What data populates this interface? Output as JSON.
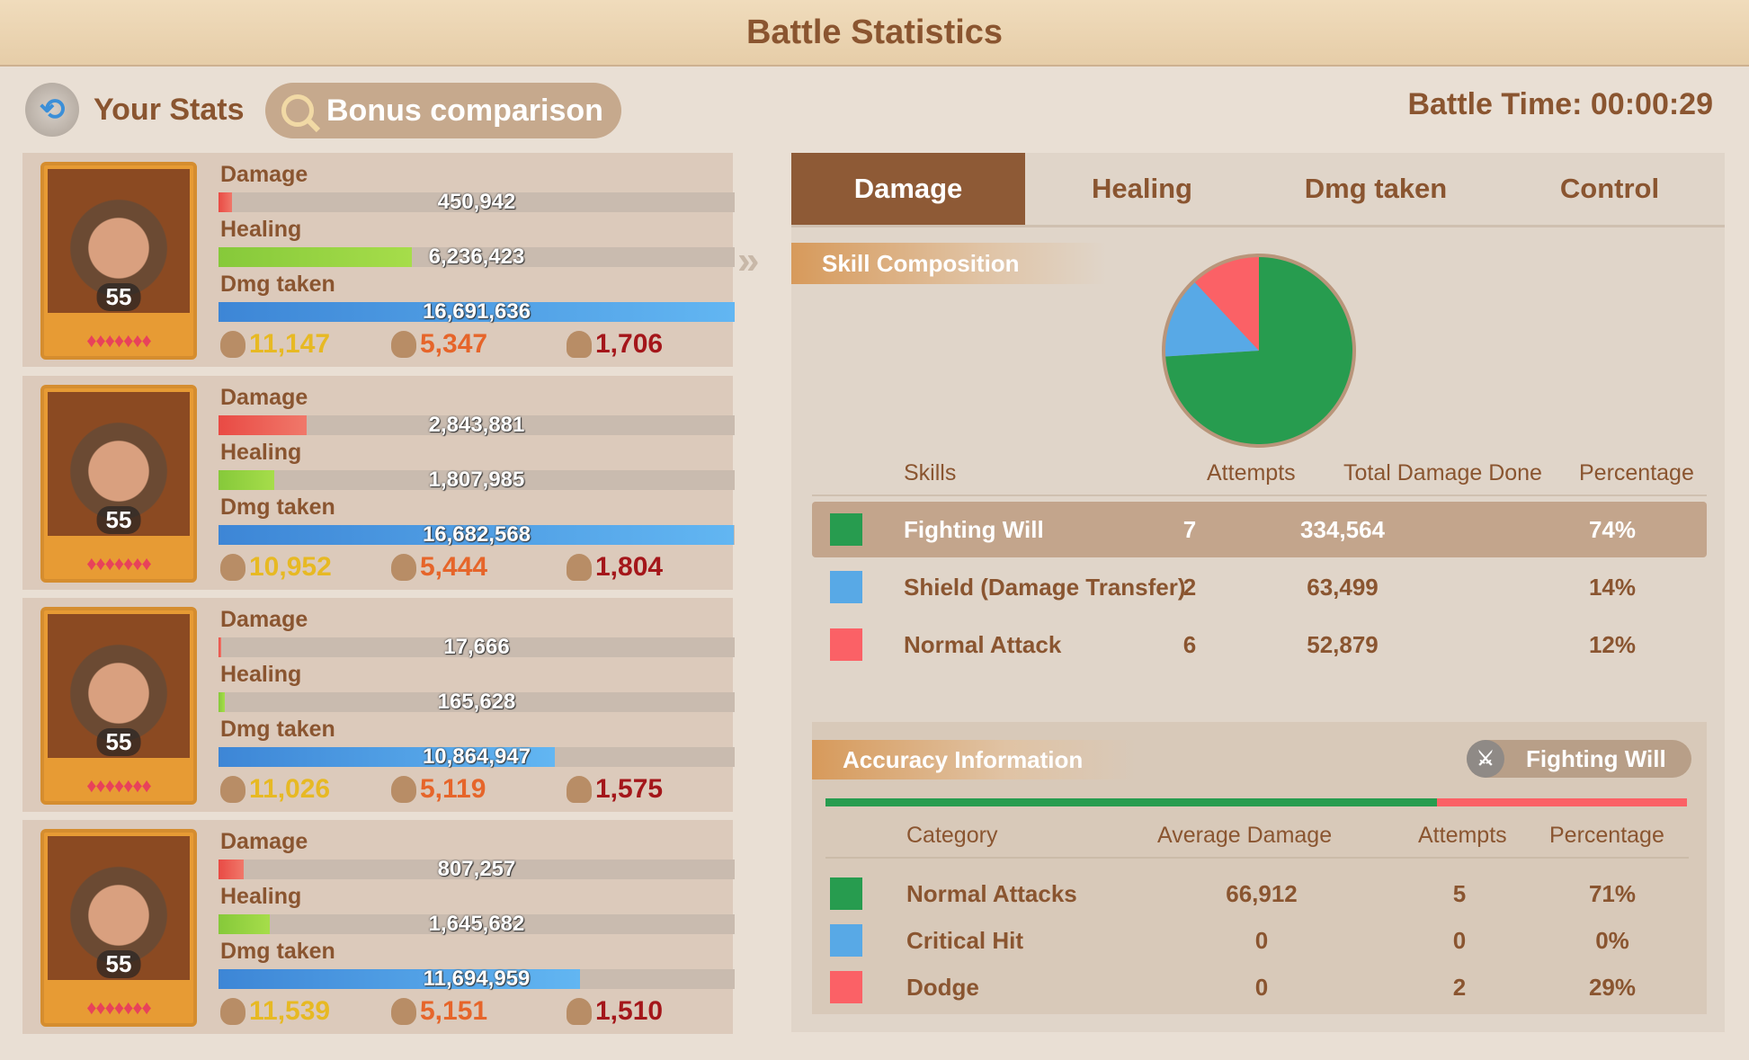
{
  "title": "Battle Statistics",
  "header": {
    "your_stats": "Your Stats",
    "bonus_comparison": "Bonus comparison",
    "battle_time": "Battle Time: 00:00:29"
  },
  "labels": {
    "damage": "Damage",
    "healing": "Healing",
    "dmg_taken": "Dmg taken"
  },
  "heroes": [
    {
      "level": "55",
      "damage": "450,942",
      "damage_fill": 0.027,
      "healing": "6,236,423",
      "healing_fill": 0.374,
      "dmg_taken": "16,691,636",
      "dmg_taken_fill": 1.0,
      "kills_a": "11,147",
      "kills_b": "5,347",
      "deaths": "1,706"
    },
    {
      "level": "55",
      "damage": "2,843,881",
      "damage_fill": 0.17,
      "healing": "1,807,985",
      "healing_fill": 0.108,
      "dmg_taken": "16,682,568",
      "dmg_taken_fill": 0.999,
      "kills_a": "10,952",
      "kills_b": "5,444",
      "deaths": "1,804"
    },
    {
      "level": "55",
      "damage": "17,666",
      "damage_fill": 0.006,
      "healing": "165,628",
      "healing_fill": 0.012,
      "dmg_taken": "10,864,947",
      "dmg_taken_fill": 0.651,
      "kills_a": "11,026",
      "kills_b": "5,119",
      "deaths": "1,575"
    },
    {
      "level": "55",
      "damage": "807,257",
      "damage_fill": 0.048,
      "healing": "1,645,682",
      "healing_fill": 0.099,
      "dmg_taken": "11,694,959",
      "dmg_taken_fill": 0.7,
      "kills_a": "11,539",
      "kills_b": "5,151",
      "deaths": "1,510"
    }
  ],
  "tabs": [
    "Damage",
    "Healing",
    "Dmg taken",
    "Control"
  ],
  "skill_composition": {
    "title": "Skill Composition",
    "columns": [
      "Skills",
      "Attempts",
      "Total Damage Done",
      "Percentage"
    ],
    "rows": [
      {
        "name": "Fighting Will",
        "attempts": "7",
        "total": "334,564",
        "pct": "74%",
        "color": "#279c4f"
      },
      {
        "name": "Shield (Damage Transfer)",
        "attempts": "2",
        "total": "63,499",
        "pct": "14%",
        "color": "#58a9e6"
      },
      {
        "name": "Normal Attack",
        "attempts": "6",
        "total": "52,879",
        "pct": "12%",
        "color": "#fb6166"
      }
    ]
  },
  "chart_data": {
    "type": "pie",
    "labels": [
      "Fighting Will",
      "Shield (Damage Transfer)",
      "Normal Attack"
    ],
    "values": [
      74,
      14,
      12
    ],
    "colors": [
      "#279c4f",
      "#58a9e6",
      "#fb6166"
    ]
  },
  "accuracy": {
    "title": "Accuracy Information",
    "selected_skill": "Fighting Will",
    "bar": {
      "normal": 71,
      "critical": 0,
      "dodge": 29
    },
    "columns": [
      "Category",
      "Average Damage",
      "Attempts",
      "Percentage"
    ],
    "rows": [
      {
        "name": "Normal Attacks",
        "avg": "66,912",
        "attempts": "5",
        "pct": "71%",
        "color": "#279c4f"
      },
      {
        "name": "Critical Hit",
        "avg": "0",
        "attempts": "0",
        "pct": "0%",
        "color": "#58a9e6"
      },
      {
        "name": "Dodge",
        "avg": "0",
        "attempts": "2",
        "pct": "29%",
        "color": "#fb6166"
      }
    ]
  }
}
